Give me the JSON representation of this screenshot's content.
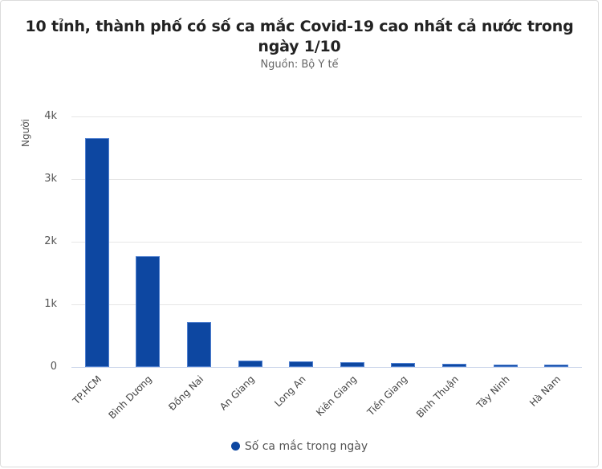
{
  "chart_data": {
    "type": "bar",
    "title": "10 tỉnh, thành phố có số ca mắc Covid-19 cao nhất cả nước trong ngày 1/10",
    "subtitle": "Nguồn: Bộ Y tế",
    "xlabel": "",
    "ylabel": "Người",
    "ylim": [
      0,
      4000
    ],
    "yticks": [
      {
        "value": 0,
        "label": "0"
      },
      {
        "value": 1000,
        "label": "1k"
      },
      {
        "value": 2000,
        "label": "2k"
      },
      {
        "value": 3000,
        "label": "3k"
      },
      {
        "value": 4000,
        "label": "4k"
      }
    ],
    "grid": true,
    "legend_position": "bottom",
    "categories": [
      "TP.HCM",
      "Bình Dương",
      "Đồng Nai",
      "An Giang",
      "Long An",
      "Kiên Giang",
      "Tiền Giang",
      "Bình Thuận",
      "Tây Ninh",
      "Hà Nam"
    ],
    "series": [
      {
        "name": "Số ca mắc trong ngày",
        "color": "#0d47a1",
        "values": [
          3650,
          1770,
          720,
          103,
          90,
          77,
          64,
          51,
          38,
          38
        ]
      }
    ]
  }
}
